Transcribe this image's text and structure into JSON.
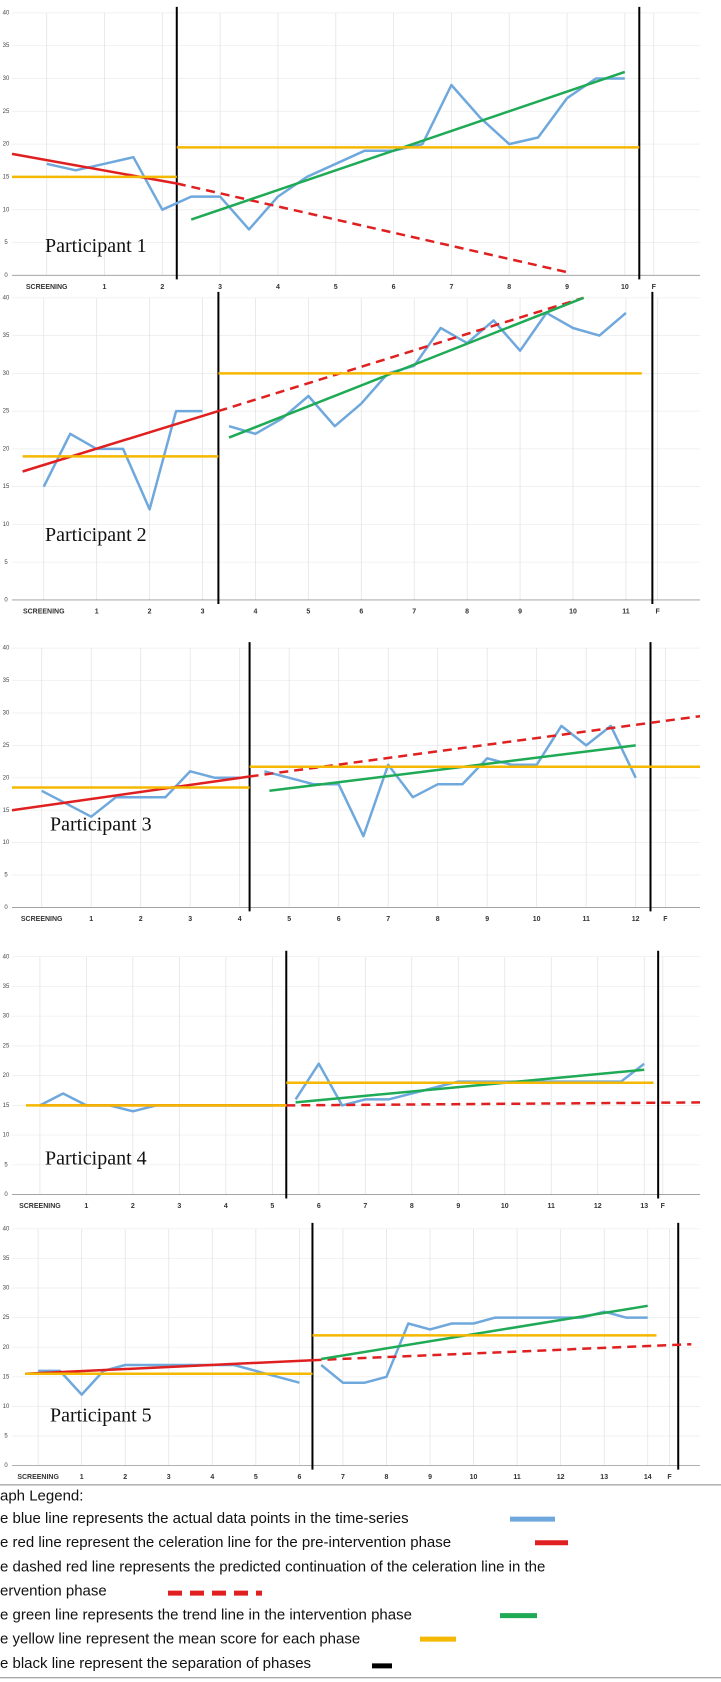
{
  "chart_data": [
    {
      "type": "line",
      "title": "Participant 1",
      "xlim": [
        -0.6,
        11.3
      ],
      "ylim": [
        0,
        40
      ],
      "yticks": [
        0,
        5,
        10,
        15,
        20,
        25,
        30,
        35,
        40
      ],
      "xticks": [
        {
          "value": 0,
          "label": "SCREENING"
        },
        1,
        2,
        3,
        4,
        5,
        6,
        7,
        8,
        9,
        10,
        {
          "value": 10.5,
          "label": "F"
        }
      ],
      "phase_lines": [
        2.25,
        10.25
      ],
      "phase_line_color": "#000000",
      "grid": true,
      "series": [
        {
          "color": "#6fa8dc",
          "dash": false,
          "x": [
            0,
            0.5,
            1,
            1.5,
            2,
            2.5,
            3,
            3.5,
            4,
            4.5,
            5,
            5.5,
            6,
            6.5,
            7,
            7.5,
            8,
            8.5,
            9,
            9.5,
            10
          ],
          "values": [
            17,
            16,
            17,
            18,
            10,
            12,
            12,
            7,
            12,
            15,
            17,
            19,
            19,
            20,
            29,
            24,
            20,
            21,
            27,
            30,
            30
          ]
        },
        {
          "color": "#e02020",
          "dash": false,
          "x": [
            -0.6,
            2.25
          ],
          "values": [
            18.5,
            14
          ]
        },
        {
          "color": "#e02020",
          "dash": true,
          "x": [
            2.25,
            9
          ],
          "values": [
            14,
            0.5
          ]
        },
        {
          "color": "#1faa55",
          "dash": false,
          "x": [
            2.5,
            10
          ],
          "values": [
            8.5,
            31
          ]
        },
        {
          "color": "#f5b800",
          "dash": false,
          "x": [
            -0.6,
            2.25
          ],
          "values": [
            15,
            15
          ]
        },
        {
          "color": "#f5b800",
          "dash": false,
          "x": [
            2.25,
            10.25
          ],
          "values": [
            19.5,
            19.5
          ]
        }
      ]
    },
    {
      "type": "line",
      "title": "Participant 2",
      "xlim": [
        -0.6,
        12.4
      ],
      "ylim": [
        0,
        40
      ],
      "yticks": [
        0,
        5,
        10,
        15,
        20,
        25,
        30,
        35,
        40
      ],
      "xticks": [
        {
          "value": 0,
          "label": "SCREENING"
        },
        1,
        2,
        3,
        4,
        5,
        6,
        7,
        8,
        9,
        10,
        11,
        {
          "value": 11.6,
          "label": "F"
        }
      ],
      "phase_lines": [
        3.3,
        11.5
      ],
      "phase_line_color": "#000000",
      "grid": true,
      "series": [
        {
          "color": "#6fa8dc",
          "dash": false,
          "x": [
            0,
            0.5,
            1,
            1.5,
            2,
            2.5,
            3
          ],
          "values": [
            15,
            22,
            20,
            20,
            12,
            25,
            25
          ]
        },
        {
          "color": "#6fa8dc",
          "dash": false,
          "x": [
            3.5,
            4,
            4.5,
            5,
            5.5,
            6,
            6.5,
            7,
            7.5,
            8,
            8.5,
            9,
            9.5,
            10,
            10.5,
            11
          ],
          "values": [
            23,
            22,
            24,
            27,
            23,
            26,
            30,
            31,
            36,
            34,
            37,
            33,
            38,
            36,
            35,
            38
          ]
        },
        {
          "color": "#e02020",
          "dash": false,
          "x": [
            -0.4,
            3.3
          ],
          "values": [
            17,
            25
          ]
        },
        {
          "color": "#e02020",
          "dash": true,
          "x": [
            3.3,
            10.2
          ],
          "values": [
            25,
            40
          ]
        },
        {
          "color": "#1faa55",
          "dash": false,
          "x": [
            3.5,
            10.2
          ],
          "values": [
            21.5,
            40
          ]
        },
        {
          "color": "#f5b800",
          "dash": false,
          "x": [
            -0.4,
            3.3
          ],
          "values": [
            19,
            19
          ]
        },
        {
          "color": "#f5b800",
          "dash": false,
          "x": [
            3.3,
            11.3
          ],
          "values": [
            30,
            30
          ]
        }
      ]
    },
    {
      "type": "line",
      "title": "Participant 3",
      "xlim": [
        -0.6,
        13.3
      ],
      "ylim": [
        0,
        40
      ],
      "yticks": [
        0,
        5,
        10,
        15,
        20,
        25,
        30,
        35,
        40
      ],
      "xticks": [
        {
          "value": 0,
          "label": "SCREENING"
        },
        1,
        2,
        3,
        4,
        5,
        6,
        7,
        8,
        9,
        10,
        11,
        12,
        {
          "value": 12.6,
          "label": "F"
        }
      ],
      "phase_lines": [
        4.2,
        12.3
      ],
      "phase_line_color": "#000000",
      "grid": true,
      "series": [
        {
          "color": "#6fa8dc",
          "dash": false,
          "x": [
            0,
            0.5,
            1,
            1.5,
            2,
            2.5,
            3,
            3.5,
            4
          ],
          "values": [
            18,
            16,
            14,
            17,
            17,
            17,
            21,
            20,
            20
          ]
        },
        {
          "color": "#6fa8dc",
          "dash": false,
          "x": [
            4.5,
            5,
            5.5,
            6,
            6.5,
            7,
            7.5,
            8,
            8.5,
            9,
            9.5,
            10,
            10.5,
            11,
            11.5,
            12
          ],
          "values": [
            21,
            20,
            19,
            19,
            11,
            22,
            17,
            19,
            19,
            23,
            22,
            22,
            28,
            25,
            28,
            20
          ]
        },
        {
          "color": "#e02020",
          "dash": false,
          "x": [
            -0.6,
            4.2
          ],
          "values": [
            15,
            20.2
          ]
        },
        {
          "color": "#e02020",
          "dash": true,
          "x": [
            4.2,
            13.3
          ],
          "values": [
            20.2,
            29.5
          ]
        },
        {
          "color": "#1faa55",
          "dash": false,
          "x": [
            4.6,
            12
          ],
          "values": [
            18,
            25
          ]
        },
        {
          "color": "#f5b800",
          "dash": false,
          "x": [
            -0.6,
            4.2
          ],
          "values": [
            18.5,
            18.5
          ]
        },
        {
          "color": "#f5b800",
          "dash": false,
          "x": [
            4.2,
            13.3
          ],
          "values": [
            21.7,
            21.7
          ]
        }
      ]
    },
    {
      "type": "line",
      "title": "Participant 4",
      "xlim": [
        -0.6,
        14.2
      ],
      "ylim": [
        0,
        40
      ],
      "yticks": [
        0,
        5,
        10,
        15,
        20,
        25,
        30,
        35,
        40
      ],
      "xticks": [
        {
          "value": 0,
          "label": "SCREENING"
        },
        1,
        2,
        3,
        4,
        5,
        6,
        7,
        8,
        9,
        10,
        11,
        12,
        13,
        {
          "value": 13.4,
          "label": "F"
        }
      ],
      "phase_lines": [
        5.3,
        13.3
      ],
      "phase_line_color": "#000000",
      "grid": true,
      "series": [
        {
          "color": "#6fa8dc",
          "dash": false,
          "x": [
            0,
            0.5,
            1,
            1.5,
            2,
            2.5,
            3,
            3.5,
            4,
            4.5,
            5
          ],
          "values": [
            15,
            17,
            15,
            15,
            14,
            15,
            15,
            15,
            15,
            15,
            15
          ]
        },
        {
          "color": "#6fa8dc",
          "dash": false,
          "x": [
            5.5,
            6,
            6.5,
            7,
            7.5,
            8,
            8.5,
            9,
            9.5,
            10,
            10.5,
            11,
            11.5,
            12,
            12.5,
            13
          ],
          "values": [
            16,
            22,
            15,
            16,
            16,
            17,
            18,
            19,
            19,
            19,
            19,
            19,
            19,
            19,
            19,
            22
          ]
        },
        {
          "color": "#e02020",
          "dash": false,
          "x": [
            0,
            5.3
          ],
          "values": [
            15,
            15
          ]
        },
        {
          "color": "#e02020",
          "dash": true,
          "x": [
            5.3,
            14.2
          ],
          "values": [
            15,
            15.5
          ]
        },
        {
          "color": "#1faa55",
          "dash": false,
          "x": [
            5.5,
            13
          ],
          "values": [
            15.5,
            21
          ]
        },
        {
          "color": "#f5b800",
          "dash": false,
          "x": [
            -0.3,
            5.3
          ],
          "values": [
            15,
            15
          ]
        },
        {
          "color": "#f5b800",
          "dash": false,
          "x": [
            5.3,
            13.2
          ],
          "values": [
            18.8,
            18.8
          ]
        }
      ]
    },
    {
      "type": "line",
      "title": "Participant 5",
      "xlim": [
        -0.6,
        15.2
      ],
      "ylim": [
        0,
        40
      ],
      "yticks": [
        0,
        5,
        10,
        15,
        20,
        25,
        30,
        35,
        40
      ],
      "xticks": [
        {
          "value": 0,
          "label": "SCREENING"
        },
        1,
        2,
        3,
        4,
        5,
        6,
        7,
        8,
        9,
        10,
        11,
        12,
        13,
        14,
        {
          "value": 14.5,
          "label": "F"
        }
      ],
      "phase_lines": [
        6.3,
        14.7
      ],
      "phase_line_color": "#000000",
      "grid": true,
      "series": [
        {
          "color": "#6fa8dc",
          "dash": false,
          "x": [
            0,
            0.5,
            1,
            1.5,
            2,
            2.5,
            3,
            3.5,
            4,
            4.5,
            5,
            5.5,
            6
          ],
          "values": [
            16,
            16,
            12,
            16,
            17,
            17,
            17,
            17,
            17,
            17,
            16,
            15,
            14
          ]
        },
        {
          "color": "#6fa8dc",
          "dash": false,
          "x": [
            6.5,
            7,
            7.5,
            8,
            8.5,
            9,
            9.5,
            10,
            10.5,
            11,
            11.5,
            12,
            12.5,
            13,
            13.5,
            14
          ],
          "values": [
            17,
            14,
            14,
            15,
            24,
            23,
            24,
            24,
            25,
            25,
            25,
            25,
            25,
            26,
            25,
            25
          ]
        },
        {
          "color": "#e02020",
          "dash": false,
          "x": [
            -0.3,
            6.3
          ],
          "values": [
            15.5,
            17.8
          ]
        },
        {
          "color": "#e02020",
          "dash": true,
          "x": [
            6.3,
            15
          ],
          "values": [
            17.8,
            20.5
          ]
        },
        {
          "color": "#1faa55",
          "dash": false,
          "x": [
            6.5,
            14
          ],
          "values": [
            18,
            27
          ]
        },
        {
          "color": "#f5b800",
          "dash": false,
          "x": [
            -0.3,
            6.3
          ],
          "values": [
            15.5,
            15.5
          ]
        },
        {
          "color": "#f5b800",
          "dash": false,
          "x": [
            6.3,
            14.2
          ],
          "values": [
            22,
            22
          ]
        }
      ]
    }
  ],
  "legend": {
    "title": "aph Legend:",
    "items": [
      {
        "lines": [
          "e blue line represents the actual data points in the time-series"
        ],
        "color": "#6fa8dc",
        "dash": false
      },
      {
        "lines": [
          "e red line represent the celeration line for the pre-intervention phase"
        ],
        "color": "#e02020",
        "dash": false
      },
      {
        "lines": [
          "e dashed red line represents the predicted continuation of the celeration line in the",
          "ervention phase"
        ],
        "color": "#e02020",
        "dash": true
      },
      {
        "lines": [
          "e green line represents the trend line in the intervention phase"
        ],
        "color": "#1faa55",
        "dash": false
      },
      {
        "lines": [
          "e yellow line represent the mean score for each phase"
        ],
        "color": "#f5b800",
        "dash": false
      },
      {
        "lines": [
          "e black line represent the separation of phases"
        ],
        "color": "#000000",
        "dash": false
      }
    ]
  }
}
